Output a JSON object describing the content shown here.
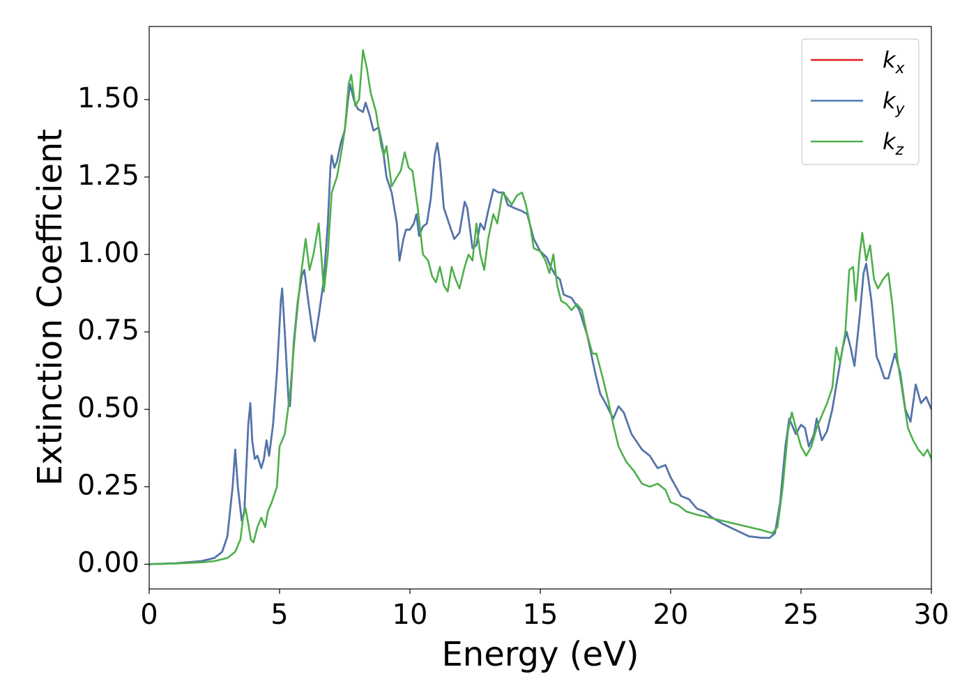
{
  "chart_data": {
    "type": "line",
    "xlabel": "Energy (eV)",
    "ylabel": "Extinction Coefficient",
    "xlim": [
      0,
      30
    ],
    "ylim": [
      -0.08,
      1.736
    ],
    "xticks": [
      0,
      5,
      10,
      15,
      20,
      25,
      30
    ],
    "yticks": [
      {
        "value": 0,
        "label": "0.00"
      },
      0.25,
      {
        "value": 0.5,
        "label": "0.50"
      },
      0.75,
      {
        "value": 1,
        "label": "1.00"
      },
      1.25,
      {
        "value": 1.5,
        "label": "1.50"
      }
    ],
    "legend": "upper right",
    "grid": false,
    "series": [
      {
        "name": "kx",
        "color": "#e41a1c",
        "x": [
          0,
          1,
          2,
          2.5,
          2.8,
          3.0,
          3.2,
          3.3,
          3.4,
          3.55,
          3.65,
          3.8,
          3.88,
          3.95,
          4.05,
          4.15,
          4.3,
          4.4,
          4.5,
          4.6,
          4.75,
          4.9,
          5.05,
          5.1,
          5.2,
          5.35,
          5.4,
          5.55,
          5.7,
          5.85,
          5.95,
          6.1,
          6.3,
          6.35,
          6.5,
          6.7,
          6.85,
          6.95,
          7.0,
          7.1,
          7.2,
          7.35,
          7.5,
          7.6,
          7.7,
          7.85,
          8.0,
          8.2,
          8.3,
          8.45,
          8.6,
          8.8,
          8.95,
          9.1,
          9.3,
          9.5,
          9.6,
          9.75,
          9.85,
          10.0,
          10.15,
          10.25,
          10.35,
          10.5,
          10.65,
          10.8,
          10.95,
          11.05,
          11.15,
          11.3,
          11.5,
          11.7,
          11.9,
          12.1,
          12.2,
          12.4,
          12.55,
          12.7,
          12.85,
          13.0,
          13.2,
          13.4,
          13.6,
          13.75,
          14.0,
          14.3,
          14.5,
          14.75,
          15.0,
          15.25,
          15.4,
          15.6,
          15.75,
          15.9,
          16.2,
          16.5,
          16.8,
          17.1,
          17.3,
          17.5,
          17.8,
          18.0,
          18.2,
          18.5,
          18.9,
          19.2,
          19.5,
          19.8,
          20.0,
          20.4,
          20.7,
          21.0,
          21.3,
          21.6,
          22.0,
          22.5,
          23.0,
          23.5,
          23.8,
          24.0,
          24.2,
          24.4,
          24.55,
          24.8,
          25.0,
          25.15,
          25.3,
          25.5,
          25.6,
          25.8,
          26.0,
          26.2,
          26.4,
          26.6,
          26.75,
          26.9,
          27.05,
          27.25,
          27.4,
          27.5,
          27.7,
          27.9,
          28.0,
          28.2,
          28.35,
          28.6,
          28.8,
          29.0,
          29.2,
          29.4,
          29.6,
          29.8,
          30.0
        ],
        "values": [
          0,
          0.003,
          0.01,
          0.02,
          0.04,
          0.09,
          0.25,
          0.37,
          0.25,
          0.14,
          0.17,
          0.45,
          0.52,
          0.4,
          0.34,
          0.35,
          0.31,
          0.34,
          0.4,
          0.35,
          0.45,
          0.62,
          0.85,
          0.89,
          0.75,
          0.52,
          0.51,
          0.72,
          0.85,
          0.93,
          0.95,
          0.85,
          0.73,
          0.72,
          0.8,
          0.92,
          1.1,
          1.28,
          1.32,
          1.28,
          1.3,
          1.36,
          1.4,
          1.48,
          1.55,
          1.5,
          1.47,
          1.46,
          1.49,
          1.45,
          1.4,
          1.41,
          1.35,
          1.25,
          1.2,
          1.1,
          0.98,
          1.05,
          1.08,
          1.08,
          1.1,
          1.13,
          1.06,
          1.09,
          1.1,
          1.18,
          1.32,
          1.36,
          1.3,
          1.15,
          1.1,
          1.05,
          1.07,
          1.17,
          1.15,
          1.02,
          1.03,
          1.1,
          1.08,
          1.14,
          1.21,
          1.2,
          1.2,
          1.16,
          1.15,
          1.14,
          1.13,
          1.05,
          1.01,
          0.99,
          0.96,
          0.93,
          0.92,
          0.87,
          0.86,
          0.82,
          0.74,
          0.62,
          0.55,
          0.52,
          0.47,
          0.51,
          0.49,
          0.42,
          0.37,
          0.35,
          0.31,
          0.32,
          0.28,
          0.22,
          0.21,
          0.18,
          0.17,
          0.15,
          0.13,
          0.11,
          0.09,
          0.085,
          0.085,
          0.1,
          0.2,
          0.38,
          0.47,
          0.42,
          0.45,
          0.44,
          0.38,
          0.42,
          0.47,
          0.4,
          0.43,
          0.5,
          0.6,
          0.7,
          0.75,
          0.7,
          0.64,
          0.8,
          0.94,
          0.97,
          0.85,
          0.67,
          0.65,
          0.6,
          0.6,
          0.68,
          0.62,
          0.5,
          0.46,
          0.58,
          0.52,
          0.54,
          0.5
        ]
      },
      {
        "name": "ky",
        "color": "#4a78b0",
        "x": [
          0,
          1,
          2,
          2.5,
          2.8,
          3.0,
          3.2,
          3.3,
          3.4,
          3.55,
          3.65,
          3.8,
          3.88,
          3.95,
          4.05,
          4.15,
          4.3,
          4.4,
          4.5,
          4.6,
          4.75,
          4.9,
          5.05,
          5.1,
          5.2,
          5.35,
          5.4,
          5.55,
          5.7,
          5.85,
          5.95,
          6.1,
          6.3,
          6.35,
          6.5,
          6.7,
          6.85,
          6.95,
          7.0,
          7.1,
          7.2,
          7.35,
          7.5,
          7.6,
          7.7,
          7.85,
          8.0,
          8.2,
          8.3,
          8.45,
          8.6,
          8.8,
          8.95,
          9.1,
          9.3,
          9.5,
          9.6,
          9.75,
          9.85,
          10.0,
          10.15,
          10.25,
          10.35,
          10.5,
          10.65,
          10.8,
          10.95,
          11.05,
          11.15,
          11.3,
          11.5,
          11.7,
          11.9,
          12.1,
          12.2,
          12.4,
          12.55,
          12.7,
          12.85,
          13.0,
          13.2,
          13.4,
          13.6,
          13.75,
          14.0,
          14.3,
          14.5,
          14.75,
          15.0,
          15.25,
          15.4,
          15.6,
          15.75,
          15.9,
          16.2,
          16.5,
          16.8,
          17.1,
          17.3,
          17.5,
          17.8,
          18.0,
          18.2,
          18.5,
          18.9,
          19.2,
          19.5,
          19.8,
          20.0,
          20.4,
          20.7,
          21.0,
          21.3,
          21.6,
          22.0,
          22.5,
          23.0,
          23.5,
          23.8,
          24.0,
          24.2,
          24.4,
          24.55,
          24.8,
          25.0,
          25.15,
          25.3,
          25.5,
          25.6,
          25.8,
          26.0,
          26.2,
          26.4,
          26.6,
          26.75,
          26.9,
          27.05,
          27.25,
          27.4,
          27.5,
          27.7,
          27.9,
          28.0,
          28.2,
          28.35,
          28.6,
          28.8,
          29.0,
          29.2,
          29.4,
          29.6,
          29.8,
          30.0
        ],
        "values": [
          0,
          0.003,
          0.01,
          0.02,
          0.04,
          0.09,
          0.25,
          0.37,
          0.25,
          0.14,
          0.17,
          0.45,
          0.52,
          0.4,
          0.34,
          0.35,
          0.31,
          0.34,
          0.4,
          0.35,
          0.45,
          0.62,
          0.85,
          0.89,
          0.75,
          0.52,
          0.51,
          0.72,
          0.85,
          0.93,
          0.95,
          0.85,
          0.73,
          0.72,
          0.8,
          0.92,
          1.1,
          1.28,
          1.32,
          1.28,
          1.3,
          1.36,
          1.4,
          1.48,
          1.55,
          1.5,
          1.47,
          1.46,
          1.49,
          1.45,
          1.4,
          1.41,
          1.35,
          1.25,
          1.2,
          1.1,
          0.98,
          1.05,
          1.08,
          1.08,
          1.1,
          1.13,
          1.06,
          1.09,
          1.1,
          1.18,
          1.32,
          1.36,
          1.3,
          1.15,
          1.1,
          1.05,
          1.07,
          1.17,
          1.15,
          1.02,
          1.03,
          1.1,
          1.08,
          1.14,
          1.21,
          1.2,
          1.2,
          1.16,
          1.15,
          1.14,
          1.13,
          1.05,
          1.01,
          0.99,
          0.96,
          0.93,
          0.92,
          0.87,
          0.86,
          0.82,
          0.74,
          0.62,
          0.55,
          0.52,
          0.47,
          0.51,
          0.49,
          0.42,
          0.37,
          0.35,
          0.31,
          0.32,
          0.28,
          0.22,
          0.21,
          0.18,
          0.17,
          0.15,
          0.13,
          0.11,
          0.09,
          0.085,
          0.085,
          0.1,
          0.2,
          0.38,
          0.47,
          0.42,
          0.45,
          0.44,
          0.38,
          0.42,
          0.47,
          0.4,
          0.43,
          0.5,
          0.6,
          0.7,
          0.75,
          0.7,
          0.64,
          0.8,
          0.94,
          0.97,
          0.85,
          0.67,
          0.65,
          0.6,
          0.6,
          0.68,
          0.62,
          0.5,
          0.46,
          0.58,
          0.52,
          0.54,
          0.5
        ]
      },
      {
        "name": "kz",
        "color": "#4daf4a",
        "x": [
          0,
          1,
          2,
          2.5,
          3.0,
          3.3,
          3.5,
          3.6,
          3.7,
          3.8,
          3.9,
          4.0,
          4.15,
          4.3,
          4.45,
          4.55,
          4.7,
          4.9,
          5.0,
          5.2,
          5.4,
          5.6,
          5.8,
          6.0,
          6.15,
          6.3,
          6.5,
          6.6,
          6.7,
          6.85,
          7.0,
          7.2,
          7.35,
          7.5,
          7.65,
          7.75,
          7.9,
          8.05,
          8.2,
          8.35,
          8.5,
          8.7,
          8.9,
          9.0,
          9.1,
          9.3,
          9.5,
          9.65,
          9.8,
          9.95,
          10.1,
          10.3,
          10.5,
          10.7,
          10.85,
          11.0,
          11.15,
          11.3,
          11.45,
          11.6,
          11.75,
          11.9,
          12.1,
          12.25,
          12.4,
          12.55,
          12.7,
          12.85,
          13.0,
          13.2,
          13.35,
          13.55,
          13.75,
          13.9,
          14.1,
          14.3,
          14.45,
          14.6,
          14.75,
          15.0,
          15.2,
          15.35,
          15.5,
          15.65,
          15.8,
          16.0,
          16.2,
          16.4,
          16.6,
          16.8,
          17.0,
          17.15,
          17.4,
          17.6,
          17.8,
          18.0,
          18.3,
          18.6,
          18.9,
          19.2,
          19.5,
          19.8,
          20.0,
          20.3,
          20.6,
          21.0,
          21.5,
          22.0,
          22.5,
          23.0,
          23.5,
          23.9,
          24.1,
          24.3,
          24.5,
          24.65,
          24.8,
          25.0,
          25.2,
          25.4,
          25.6,
          25.8,
          26.0,
          26.2,
          26.35,
          26.5,
          26.7,
          26.85,
          27.0,
          27.1,
          27.25,
          27.35,
          27.5,
          27.65,
          27.8,
          27.95,
          28.15,
          28.35,
          28.5,
          28.7,
          28.9,
          29.1,
          29.3,
          29.5,
          29.7,
          29.85,
          30.0
        ],
        "values": [
          0,
          0.002,
          0.006,
          0.01,
          0.02,
          0.04,
          0.08,
          0.15,
          0.18,
          0.13,
          0.08,
          0.07,
          0.12,
          0.15,
          0.12,
          0.17,
          0.2,
          0.25,
          0.38,
          0.42,
          0.55,
          0.75,
          0.92,
          1.05,
          0.95,
          1.0,
          1.1,
          1.0,
          0.88,
          1.0,
          1.2,
          1.25,
          1.32,
          1.4,
          1.55,
          1.58,
          1.48,
          1.5,
          1.66,
          1.6,
          1.52,
          1.46,
          1.35,
          1.32,
          1.35,
          1.22,
          1.25,
          1.27,
          1.33,
          1.28,
          1.27,
          1.15,
          1.0,
          0.98,
          0.93,
          0.91,
          0.96,
          0.9,
          0.88,
          0.96,
          0.92,
          0.89,
          0.96,
          1.0,
          0.98,
          1.1,
          1.0,
          0.95,
          1.05,
          1.13,
          1.1,
          1.2,
          1.18,
          1.16,
          1.19,
          1.2,
          1.16,
          1.1,
          1.02,
          1.01,
          0.98,
          0.94,
          1.0,
          0.9,
          0.85,
          0.84,
          0.82,
          0.84,
          0.82,
          0.74,
          0.68,
          0.68,
          0.6,
          0.53,
          0.45,
          0.38,
          0.33,
          0.3,
          0.26,
          0.25,
          0.26,
          0.24,
          0.2,
          0.19,
          0.17,
          0.16,
          0.15,
          0.14,
          0.13,
          0.12,
          0.11,
          0.1,
          0.12,
          0.25,
          0.43,
          0.49,
          0.44,
          0.38,
          0.35,
          0.38,
          0.44,
          0.48,
          0.52,
          0.57,
          0.7,
          0.65,
          0.75,
          0.95,
          0.96,
          0.85,
          1.0,
          1.07,
          0.98,
          1.03,
          0.92,
          0.89,
          0.92,
          0.94,
          0.84,
          0.66,
          0.55,
          0.44,
          0.4,
          0.37,
          0.35,
          0.37,
          0.34
        ]
      }
    ]
  }
}
